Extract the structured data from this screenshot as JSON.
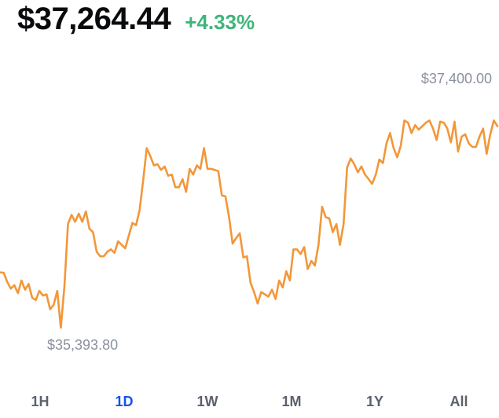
{
  "header": {
    "price": "$37,264.44",
    "change": "+4.33%"
  },
  "chart_data": {
    "type": "line",
    "high_label": "$37,400.00",
    "low_label": "$35,393.80",
    "ylim": [
      35393.8,
      37400.0
    ],
    "line_color": "#f2973a",
    "values": [
      35880,
      35878,
      35800,
      35740,
      35770,
      35700,
      35810,
      35730,
      35780,
      35660,
      35640,
      35720,
      35680,
      35690,
      35560,
      35600,
      35720,
      35400,
      35760,
      36300,
      36380,
      36320,
      36390,
      36320,
      36410,
      36260,
      36230,
      36060,
      36020,
      36020,
      36060,
      36080,
      36050,
      36150,
      36120,
      36090,
      36200,
      36310,
      36290,
      36420,
      36680,
      36960,
      36890,
      36810,
      36820,
      36770,
      36800,
      36720,
      36730,
      36620,
      36620,
      36690,
      36580,
      36780,
      36730,
      36810,
      36780,
      36960,
      36780,
      36780,
      36770,
      36760,
      36550,
      36540,
      36360,
      36130,
      36180,
      36220,
      36010,
      36020,
      35790,
      35710,
      35610,
      35710,
      35690,
      35670,
      35730,
      35650,
      35810,
      35750,
      35890,
      35810,
      36080,
      36080,
      36040,
      36100,
      35910,
      35980,
      35940,
      36120,
      36450,
      36360,
      36350,
      36230,
      36300,
      36120,
      36300,
      36790,
      36870,
      36820,
      36750,
      36800,
      36730,
      36690,
      36650,
      36730,
      36860,
      36830,
      37000,
      37090,
      36960,
      36880,
      36980,
      37200,
      37180,
      37090,
      37160,
      37120,
      37150,
      37180,
      37200,
      37130,
      37030,
      37190,
      37180,
      37130,
      37010,
      37190,
      36930,
      37060,
      37080,
      37000,
      36970,
      36970,
      37060,
      37130,
      36910,
      37080,
      37200,
      37150
    ]
  },
  "ranges": [
    {
      "label": "1H",
      "active": false
    },
    {
      "label": "1D",
      "active": true
    },
    {
      "label": "1W",
      "active": false
    },
    {
      "label": "1M",
      "active": false
    },
    {
      "label": "1Y",
      "active": false
    },
    {
      "label": "All",
      "active": false
    }
  ]
}
